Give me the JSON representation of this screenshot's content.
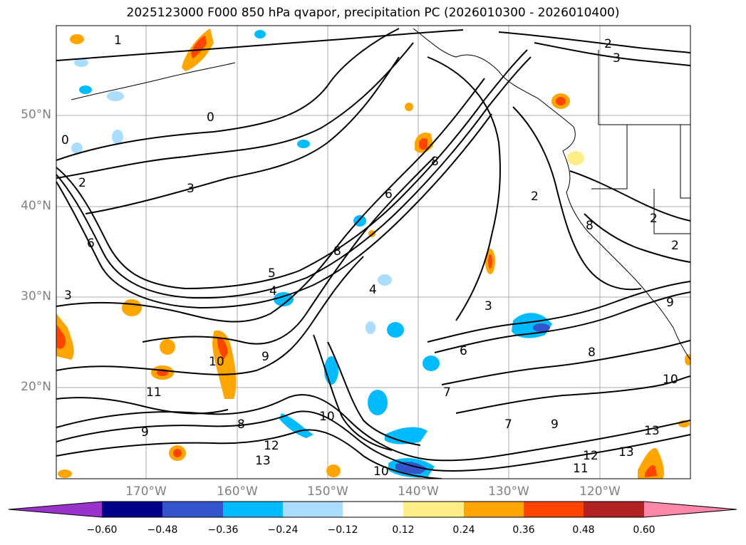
{
  "title": "2025123000 F000 850 hPa qvapor, precipitation PC (2026010300 - 2026010400)",
  "latitude_labels": [
    "50°N",
    "40°N",
    "30°N",
    "20°N"
  ],
  "longitude_labels": [
    "170°W",
    "160°W",
    "150°W",
    "140°W",
    "130°W",
    "120°W"
  ],
  "colorbar": {
    "tick_labels": [
      "−0.60",
      "−0.48",
      "−0.36",
      "−0.24",
      "−0.12",
      "0.12",
      "0.24",
      "0.36",
      "0.48",
      "0.60"
    ],
    "colors": [
      "#9933cc",
      "#000088",
      "#3355cc",
      "#00bbff",
      "#aaddff",
      "#ffffff",
      "#ffee88",
      "#ffa500",
      "#ff4400",
      "#b22222",
      "#ff88aa"
    ]
  },
  "colors": {
    "contour": "#000000",
    "grid": "#888888",
    "coast": "#000000"
  },
  "contour_labels": [
    "1",
    "2",
    "3",
    "3",
    "0",
    "0",
    "2",
    "3",
    "6",
    "8",
    "2",
    "6",
    "5",
    "4",
    "8",
    "3",
    "4",
    "8",
    "7",
    "6",
    "9",
    "10",
    "11",
    "9",
    "8",
    "10",
    "10",
    "7",
    "9",
    "12",
    "13",
    "13",
    "11",
    "12",
    "13",
    "10",
    "8",
    "2",
    "2",
    "9"
  ]
}
